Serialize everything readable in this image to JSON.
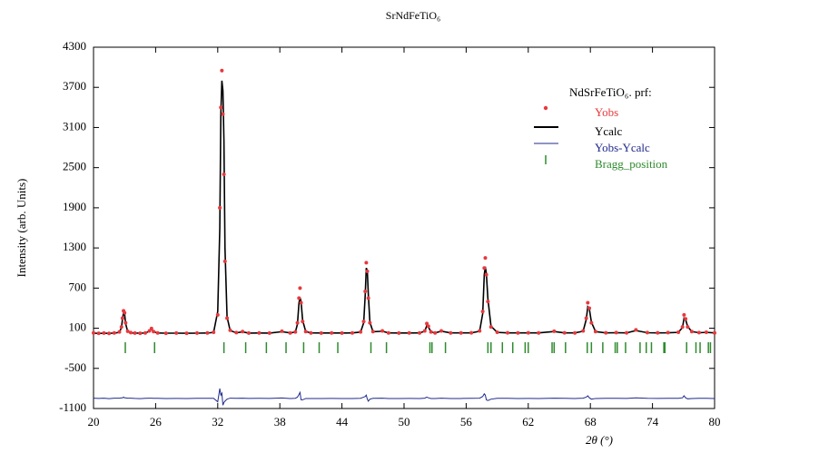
{
  "chart_data": {
    "type": "rietveld",
    "title": "SrNdFeTiO₆",
    "x_label": "2θ (°)",
    "y_label": "Intensity (arb. Units)",
    "legend_title": "NdSrFeTiO₆. prf:",
    "xlim": [
      20,
      80
    ],
    "xticks": [
      20,
      26,
      32,
      38,
      44,
      50,
      56,
      62,
      68,
      74,
      80
    ],
    "ylim": [
      -1100,
      4300
    ],
    "yticks": [
      -1100,
      -500,
      100,
      700,
      1300,
      1900,
      2500,
      3100,
      3700,
      4300
    ],
    "x": [
      20,
      20.5,
      21,
      21.5,
      22,
      22.5,
      22.7,
      22.8,
      22.9,
      23.0,
      23.1,
      23.3,
      23.6,
      24,
      24.5,
      25,
      25.4,
      25.6,
      25.8,
      26.2,
      27,
      28,
      29,
      30,
      31,
      31.6,
      32.0,
      32.2,
      32.3,
      32.4,
      32.5,
      32.6,
      32.7,
      32.9,
      33.2,
      33.8,
      34.4,
      35,
      36,
      37,
      38.2,
      39,
      39.5,
      39.7,
      39.85,
      39.95,
      40.05,
      40.2,
      40.5,
      41,
      42,
      43,
      44,
      45,
      45.8,
      46.1,
      46.25,
      46.35,
      46.45,
      46.55,
      46.7,
      47,
      47.9,
      48.5,
      49.5,
      50.5,
      51.5,
      52.0,
      52.2,
      52.35,
      52.6,
      53.0,
      53.6,
      54.5,
      55.5,
      56.5,
      57.3,
      57.6,
      57.75,
      57.85,
      57.95,
      58.1,
      58.4,
      59,
      60,
      61,
      62,
      63,
      64.5,
      65.5,
      66.5,
      67.3,
      67.6,
      67.75,
      67.9,
      68.1,
      68.5,
      69.5,
      70.5,
      71.5,
      72.4,
      73.5,
      74.5,
      75.5,
      76.5,
      76.9,
      77.05,
      77.2,
      77.4,
      77.8,
      78.5,
      79.2,
      80
    ],
    "series": [
      {
        "name": "Yobs",
        "style": "points",
        "color": "#e8383d",
        "values": [
          30,
          25,
          28,
          22,
          30,
          45,
          120,
          250,
          360,
          330,
          180,
          55,
          35,
          28,
          25,
          30,
          60,
          95,
          50,
          30,
          25,
          27,
          25,
          28,
          30,
          40,
          300,
          1900,
          3400,
          3950,
          3300,
          2400,
          1100,
          250,
          70,
          35,
          50,
          28,
          30,
          28,
          55,
          30,
          45,
          180,
          550,
          700,
          480,
          200,
          50,
          30,
          28,
          30,
          28,
          30,
          45,
          200,
          650,
          1080,
          950,
          550,
          180,
          50,
          60,
          30,
          28,
          30,
          30,
          60,
          170,
          130,
          45,
          30,
          60,
          30,
          30,
          32,
          60,
          350,
          1000,
          1150,
          900,
          500,
          120,
          40,
          32,
          30,
          32,
          30,
          55,
          32,
          30,
          60,
          250,
          480,
          400,
          180,
          50,
          32,
          35,
          32,
          75,
          35,
          32,
          34,
          40,
          120,
          300,
          240,
          120,
          50,
          35,
          40,
          30
        ]
      },
      {
        "name": "Ycalc",
        "style": "line",
        "color": "#000000",
        "values": [
          25,
          24,
          24,
          25,
          26,
          40,
          110,
          240,
          330,
          320,
          170,
          50,
          30,
          27,
          27,
          28,
          55,
          90,
          48,
          28,
          26,
          26,
          25,
          26,
          28,
          38,
          350,
          1600,
          3300,
          3800,
          3650,
          2900,
          1300,
          270,
          65,
          32,
          45,
          27,
          28,
          27,
          48,
          30,
          42,
          160,
          480,
          560,
          500,
          220,
          50,
          30,
          28,
          29,
          28,
          30,
          42,
          180,
          600,
          1000,
          960,
          600,
          190,
          48,
          55,
          30,
          28,
          29,
          30,
          55,
          140,
          120,
          45,
          30,
          55,
          30,
          30,
          30,
          55,
          320,
          900,
          1020,
          920,
          540,
          130,
          38,
          30,
          30,
          31,
          30,
          50,
          30,
          30,
          55,
          230,
          420,
          390,
          190,
          50,
          30,
          33,
          31,
          65,
          33,
          31,
          32,
          38,
          110,
          250,
          230,
          125,
          50,
          33,
          38,
          30
        ]
      },
      {
        "name": "Yobs-Ycalc",
        "style": "line",
        "color": "#1f2a8c",
        "values": [
          -945,
          -949,
          -946,
          -953,
          -946,
          -945,
          -940,
          -940,
          -930,
          -940,
          -940,
          -945,
          -945,
          -949,
          -952,
          -948,
          -945,
          -945,
          -948,
          -948,
          -951,
          -949,
          -950,
          -948,
          -948,
          -948,
          -1000,
          -800,
          -900,
          -870,
          -1050,
          -1010,
          -990,
          -960,
          -945,
          -947,
          -945,
          -949,
          -948,
          -949,
          -943,
          -950,
          -947,
          -930,
          -890,
          -860,
          -970,
          -970,
          -950,
          -950,
          -950,
          -949,
          -950,
          -950,
          -947,
          -930,
          -920,
          -900,
          -960,
          -990,
          -960,
          -948,
          -945,
          -950,
          -950,
          -949,
          -950,
          -945,
          -930,
          -940,
          -950,
          -950,
          -945,
          -950,
          -950,
          -948,
          -945,
          -920,
          -880,
          -900,
          -970,
          -980,
          -960,
          -948,
          -948,
          -950,
          -949,
          -950,
          -945,
          -948,
          -950,
          -945,
          -930,
          -910,
          -940,
          -960,
          -950,
          -948,
          -948,
          -949,
          -940,
          -948,
          -949,
          -948,
          -948,
          -940,
          -910,
          -940,
          -955,
          -950,
          -948,
          -948,
          -950
        ]
      },
      {
        "name": "Bragg_position",
        "style": "ticks",
        "color": "#2e8b2e",
        "positions": [
          23.07,
          25.9,
          32.6,
          34.7,
          36.7,
          38.6,
          40.3,
          41.8,
          43.6,
          46.8,
          48.3,
          52.5,
          52.7,
          54.0,
          58.1,
          58.4,
          59.5,
          60.5,
          61.7,
          62.0,
          64.3,
          64.5,
          65.6,
          67.7,
          68.1,
          69.2,
          70.4,
          70.6,
          71.4,
          72.8,
          73.4,
          73.9,
          75.1,
          75.2,
          77.3,
          78.2,
          78.6,
          79.4,
          79.6
        ]
      }
    ]
  }
}
